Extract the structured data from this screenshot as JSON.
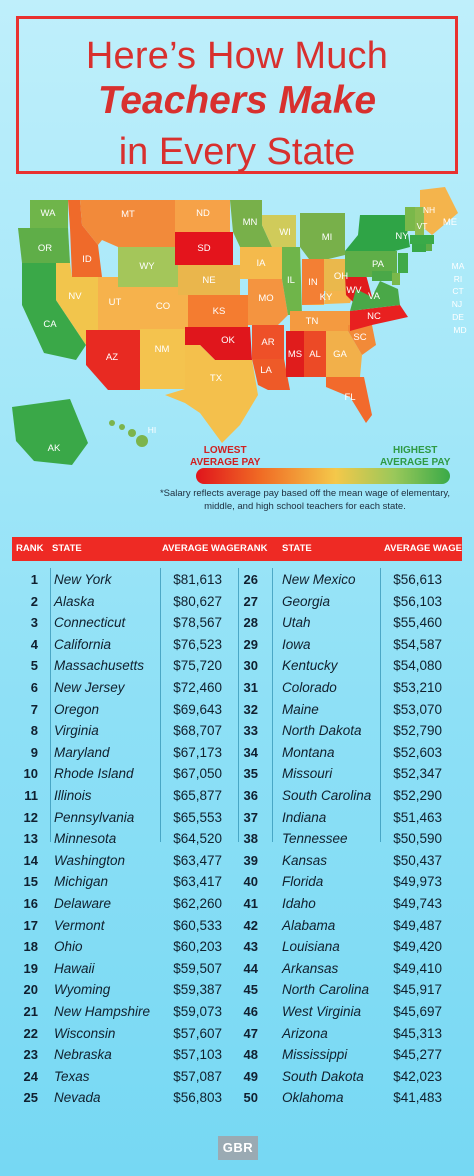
{
  "title": {
    "line1": "Here’s How Much",
    "line2": "Teachers Make",
    "line3": "in Every State"
  },
  "legend": {
    "low": "LOWEST\nAVERAGE PAY",
    "high": "HIGHEST\nAVERAGE PAY"
  },
  "footnote": "*Salary reflects average pay based off the mean wage of elementary, middle, and high school teachers for each state.",
  "map_labels": [
    "WA",
    "OR",
    "CA",
    "ID",
    "NV",
    "MT",
    "WY",
    "UT",
    "AZ",
    "CO",
    "NM",
    "ND",
    "SD",
    "NE",
    "KS",
    "OK",
    "TX",
    "MN",
    "IA",
    "MO",
    "AR",
    "LA",
    "WI",
    "IL",
    "MI",
    "IN",
    "KY",
    "TN",
    "MS",
    "AL",
    "OH",
    "GA",
    "FL",
    "SC",
    "NC",
    "WV",
    "VA",
    "PA",
    "NY",
    "ME",
    "VT",
    "NH",
    "MA",
    "RI",
    "CT",
    "NJ",
    "DE",
    "MD",
    "AK",
    "HI"
  ],
  "colors": {
    "accent": "#e8312f",
    "low": "#e0141c",
    "mid": "#f4c84a",
    "high": "#3aaa48"
  },
  "table": {
    "headers": {
      "rank": "RANK",
      "state": "STATE",
      "wage": "AVERAGE WAGE"
    },
    "left": [
      {
        "rank": "1",
        "state": "New York",
        "wage": "$81,613"
      },
      {
        "rank": "2",
        "state": "Alaska",
        "wage": "$80,627"
      },
      {
        "rank": "3",
        "state": "Connecticut",
        "wage": "$78,567"
      },
      {
        "rank": "4",
        "state": "California",
        "wage": "$76,523"
      },
      {
        "rank": "5",
        "state": "Massachusetts",
        "wage": "$75,720"
      },
      {
        "rank": "6",
        "state": "New Jersey",
        "wage": "$72,460"
      },
      {
        "rank": "7",
        "state": "Oregon",
        "wage": "$69,643"
      },
      {
        "rank": "8",
        "state": "Virginia",
        "wage": "$68,707"
      },
      {
        "rank": "9",
        "state": "Maryland",
        "wage": "$67,173"
      },
      {
        "rank": "10",
        "state": "Rhode Island",
        "wage": "$67,050"
      },
      {
        "rank": "11",
        "state": "Illinois",
        "wage": "$65,877"
      },
      {
        "rank": "12",
        "state": "Pennsylvania",
        "wage": "$65,553"
      },
      {
        "rank": "13",
        "state": "Minnesota",
        "wage": "$64,520"
      },
      {
        "rank": "14",
        "state": "Washington",
        "wage": "$63,477"
      },
      {
        "rank": "15",
        "state": "Michigan",
        "wage": "$63,417"
      },
      {
        "rank": "16",
        "state": "Delaware",
        "wage": "$62,260"
      },
      {
        "rank": "17",
        "state": "Vermont",
        "wage": "$60,533"
      },
      {
        "rank": "18",
        "state": "Ohio",
        "wage": "$60,203"
      },
      {
        "rank": "19",
        "state": "Hawaii",
        "wage": "$59,507"
      },
      {
        "rank": "20",
        "state": "Wyoming",
        "wage": "$59,387"
      },
      {
        "rank": "21",
        "state": "New Hampshire",
        "wage": "$59,073"
      },
      {
        "rank": "22",
        "state": "Wisconsin",
        "wage": "$57,607"
      },
      {
        "rank": "23",
        "state": "Nebraska",
        "wage": "$57,103"
      },
      {
        "rank": "24",
        "state": "Texas",
        "wage": "$57,087"
      },
      {
        "rank": "25",
        "state": "Nevada",
        "wage": "$56,803"
      }
    ],
    "right": [
      {
        "rank": "26",
        "state": "New Mexico",
        "wage": "$56,613"
      },
      {
        "rank": "27",
        "state": "Georgia",
        "wage": "$56,103"
      },
      {
        "rank": "28",
        "state": "Utah",
        "wage": "$55,460"
      },
      {
        "rank": "29",
        "state": "Iowa",
        "wage": "$54,587"
      },
      {
        "rank": "30",
        "state": "Kentucky",
        "wage": "$54,080"
      },
      {
        "rank": "31",
        "state": "Colorado",
        "wage": "$53,210"
      },
      {
        "rank": "32",
        "state": "Maine",
        "wage": "$53,070"
      },
      {
        "rank": "33",
        "state": "North Dakota",
        "wage": "$52,790"
      },
      {
        "rank": "34",
        "state": "Montana",
        "wage": "$52,603"
      },
      {
        "rank": "35",
        "state": "Missouri",
        "wage": "$52,347"
      },
      {
        "rank": "36",
        "state": "South Carolina",
        "wage": "$52,290"
      },
      {
        "rank": "37",
        "state": "Indiana",
        "wage": "$51,463"
      },
      {
        "rank": "38",
        "state": "Tennessee",
        "wage": "$50,590"
      },
      {
        "rank": "39",
        "state": "Kansas",
        "wage": "$50,437"
      },
      {
        "rank": "40",
        "state": "Florida",
        "wage": "$49,973"
      },
      {
        "rank": "41",
        "state": "Idaho",
        "wage": "$49,743"
      },
      {
        "rank": "42",
        "state": "Alabama",
        "wage": "$49,487"
      },
      {
        "rank": "43",
        "state": "Louisiana",
        "wage": "$49,420"
      },
      {
        "rank": "44",
        "state": "Arkansas",
        "wage": "$49,410"
      },
      {
        "rank": "45",
        "state": "North Carolina",
        "wage": "$45,917"
      },
      {
        "rank": "46",
        "state": "West Virginia",
        "wage": "$45,697"
      },
      {
        "rank": "47",
        "state": "Arizona",
        "wage": "$45,313"
      },
      {
        "rank": "48",
        "state": "Mississippi",
        "wage": "$45,277"
      },
      {
        "rank": "49",
        "state": "South Dakota",
        "wage": "$42,023"
      },
      {
        "rank": "50",
        "state": "Oklahoma",
        "wage": "$41,483"
      }
    ]
  },
  "logo": "GBR",
  "chart_data": {
    "type": "table",
    "title": "Here’s How Much Teachers Make in Every State",
    "columns": [
      "RANK",
      "STATE",
      "AVERAGE WAGE"
    ],
    "rows": [
      [
        1,
        "New York",
        81613
      ],
      [
        2,
        "Alaska",
        80627
      ],
      [
        3,
        "Connecticut",
        78567
      ],
      [
        4,
        "California",
        76523
      ],
      [
        5,
        "Massachusetts",
        75720
      ],
      [
        6,
        "New Jersey",
        72460
      ],
      [
        7,
        "Oregon",
        69643
      ],
      [
        8,
        "Virginia",
        68707
      ],
      [
        9,
        "Maryland",
        67173
      ],
      [
        10,
        "Rhode Island",
        67050
      ],
      [
        11,
        "Illinois",
        65877
      ],
      [
        12,
        "Pennsylvania",
        65553
      ],
      [
        13,
        "Minnesota",
        64520
      ],
      [
        14,
        "Washington",
        63477
      ],
      [
        15,
        "Michigan",
        63417
      ],
      [
        16,
        "Delaware",
        62260
      ],
      [
        17,
        "Vermont",
        60533
      ],
      [
        18,
        "Ohio",
        60203
      ],
      [
        19,
        "Hawaii",
        59507
      ],
      [
        20,
        "Wyoming",
        59387
      ],
      [
        21,
        "New Hampshire",
        59073
      ],
      [
        22,
        "Wisconsin",
        57607
      ],
      [
        23,
        "Nebraska",
        57103
      ],
      [
        24,
        "Texas",
        57087
      ],
      [
        25,
        "Nevada",
        56803
      ],
      [
        26,
        "New Mexico",
        56613
      ],
      [
        27,
        "Georgia",
        56103
      ],
      [
        28,
        "Utah",
        55460
      ],
      [
        29,
        "Iowa",
        54587
      ],
      [
        30,
        "Kentucky",
        54080
      ],
      [
        31,
        "Colorado",
        53210
      ],
      [
        32,
        "Maine",
        53070
      ],
      [
        33,
        "North Dakota",
        52790
      ],
      [
        34,
        "Montana",
        52603
      ],
      [
        35,
        "Missouri",
        52347
      ],
      [
        36,
        "South Carolina",
        52290
      ],
      [
        37,
        "Indiana",
        51463
      ],
      [
        38,
        "Tennessee",
        50590
      ],
      [
        39,
        "Kansas",
        50437
      ],
      [
        40,
        "Florida",
        49973
      ],
      [
        41,
        "Idaho",
        49743
      ],
      [
        42,
        "Alabama",
        49487
      ],
      [
        43,
        "Louisiana",
        49420
      ],
      [
        44,
        "Arkansas",
        49410
      ],
      [
        45,
        "North Carolina",
        45917
      ],
      [
        46,
        "West Virginia",
        45697
      ],
      [
        47,
        "Arizona",
        45313
      ],
      [
        48,
        "Mississippi",
        45277
      ],
      [
        49,
        "South Dakota",
        42023
      ],
      [
        50,
        "Oklahoma",
        41483
      ]
    ]
  }
}
